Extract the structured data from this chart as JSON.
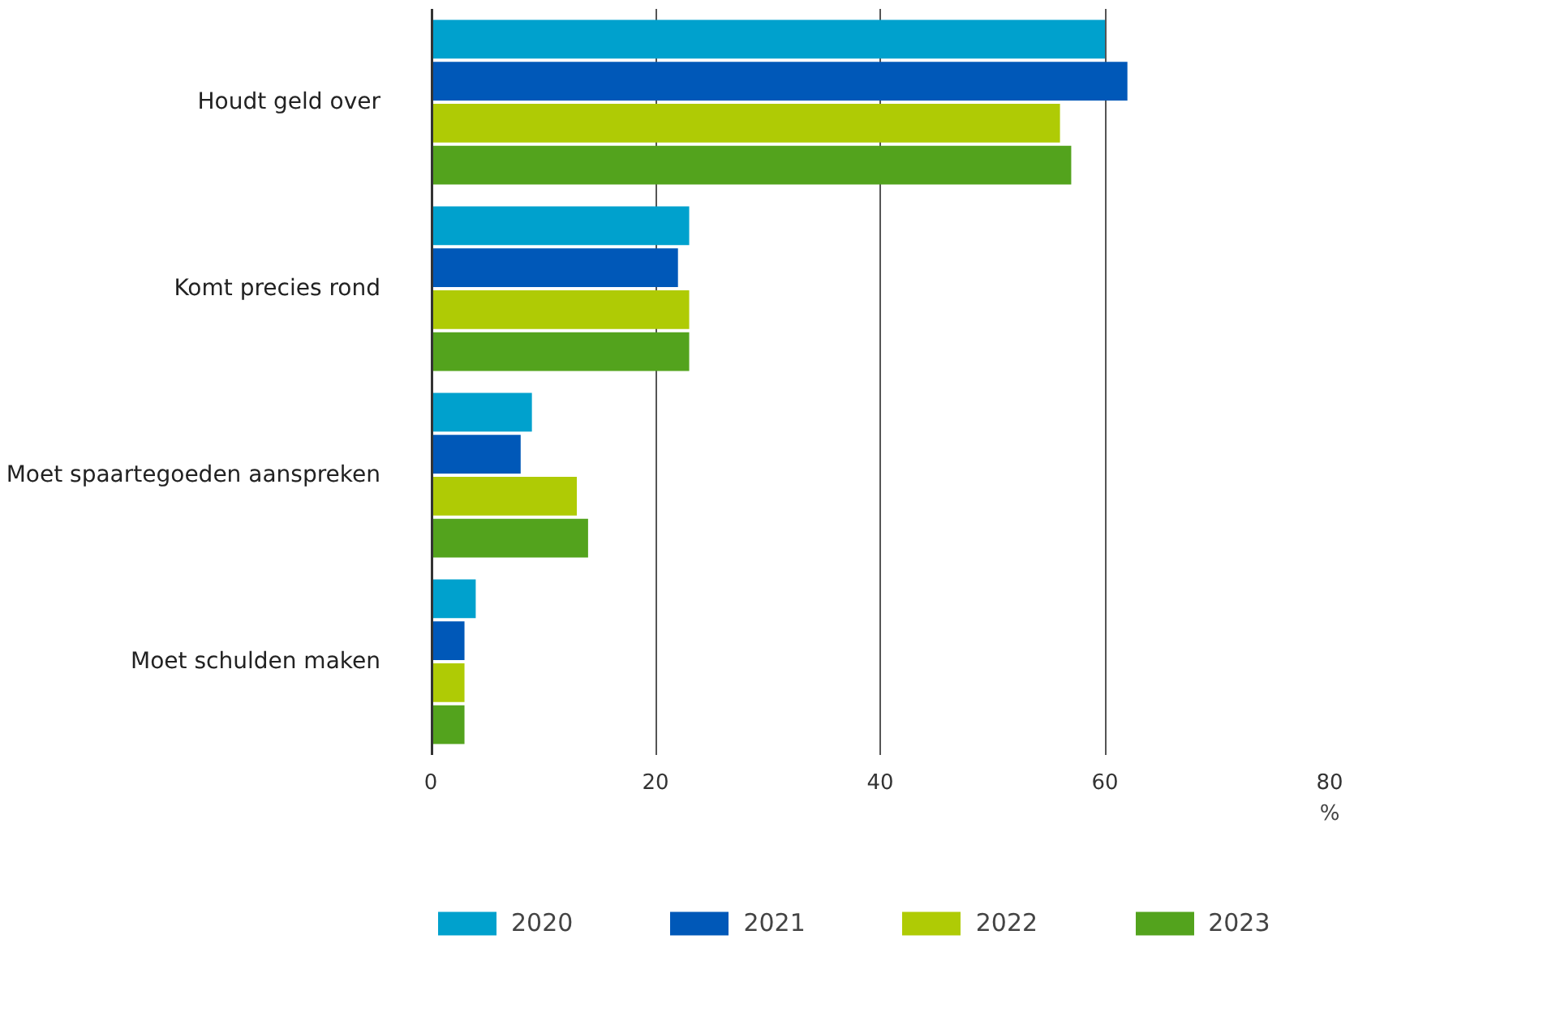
{
  "chart_data": {
    "type": "bar",
    "orientation": "horizontal",
    "categories": [
      "Houdt geld over",
      "Komt precies rond",
      "Moet spaartegoeden aanspreken",
      "Moet schulden maken"
    ],
    "series": [
      {
        "name": "2020",
        "color": "#00a1cd",
        "values": [
          60,
          23,
          9,
          4
        ]
      },
      {
        "name": "2021",
        "color": "#0058b8",
        "values": [
          62,
          22,
          8,
          3
        ]
      },
      {
        "name": "2022",
        "color": "#afcb05",
        "values": [
          56,
          23,
          13,
          3
        ]
      },
      {
        "name": "2023",
        "color": "#53a31d",
        "values": [
          57,
          23,
          14,
          3
        ]
      }
    ],
    "xlabel": "%",
    "xlim": [
      0,
      80
    ],
    "xticks": [
      0,
      20,
      40,
      60,
      80
    ],
    "grid": "x",
    "legend": "bottom"
  }
}
